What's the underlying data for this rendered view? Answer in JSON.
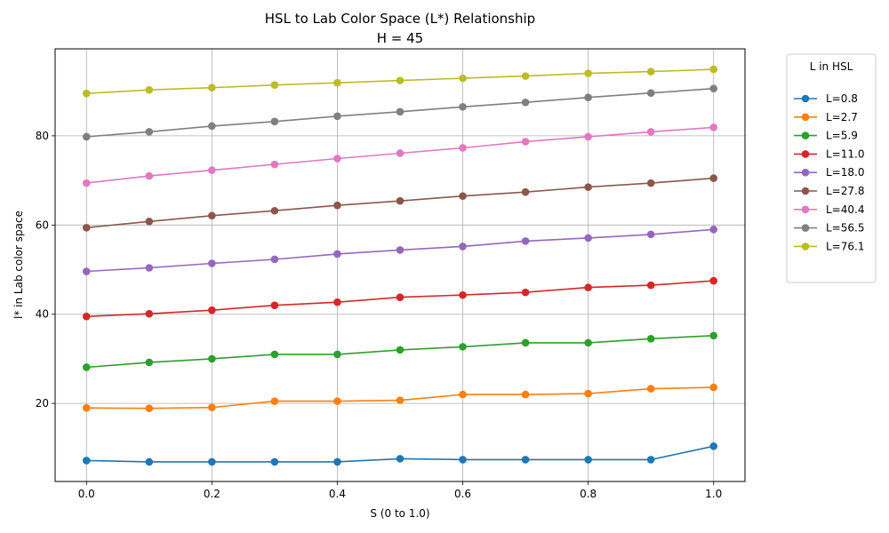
{
  "chart_data": {
    "type": "line",
    "title": "HSL to Lab Color Space (L*) Relationship",
    "subtitle": "H = 45",
    "xlabel": "S (0 to 1.0)",
    "ylabel": "l* in Lab color space",
    "xlim": [
      -0.05,
      1.05
    ],
    "ylim": [
      2.5,
      99.5
    ],
    "xticks": [
      0.0,
      0.2,
      0.4,
      0.6,
      0.8,
      1.0
    ],
    "xtick_labels": [
      "0.0",
      "0.2",
      "0.4",
      "0.6",
      "0.8",
      "1.0"
    ],
    "yticks": [
      20,
      40,
      60,
      80
    ],
    "ytick_labels": [
      "20",
      "40",
      "60",
      "80"
    ],
    "grid": true,
    "legend_title": "L in HSL",
    "legend_position": "outside-top-right",
    "x": [
      0.0,
      0.1,
      0.2,
      0.3,
      0.4,
      0.5,
      0.6,
      0.7,
      0.8,
      0.9,
      1.0
    ],
    "series": [
      {
        "name": "L=0.8",
        "color": "#1f77b4",
        "values": [
          7.2,
          6.9,
          6.9,
          6.9,
          6.9,
          7.6,
          7.4,
          7.4,
          7.4,
          7.4,
          10.4
        ]
      },
      {
        "name": "L=2.7",
        "color": "#ff7f0e",
        "values": [
          19.0,
          18.9,
          19.1,
          20.5,
          20.5,
          20.7,
          22.0,
          22.0,
          22.2,
          23.3,
          23.6
        ]
      },
      {
        "name": "L=5.9",
        "color": "#2ca02c",
        "values": [
          28.1,
          29.2,
          30.0,
          31.0,
          31.0,
          32.0,
          32.7,
          33.6,
          33.6,
          34.5,
          35.2
        ]
      },
      {
        "name": "L=11.0",
        "color": "#d62728",
        "values": [
          39.5,
          40.1,
          40.9,
          42.0,
          42.7,
          43.8,
          44.3,
          44.9,
          46.0,
          46.5,
          47.5
        ]
      },
      {
        "name": "L=18.0",
        "color": "#9467bd",
        "values": [
          49.6,
          50.4,
          51.4,
          52.3,
          53.5,
          54.4,
          55.2,
          56.4,
          57.1,
          57.9,
          59.0
        ]
      },
      {
        "name": "L=27.8",
        "color": "#8c564b",
        "values": [
          59.4,
          60.8,
          62.1,
          63.2,
          64.4,
          65.4,
          66.5,
          67.4,
          68.5,
          69.4,
          70.5
        ]
      },
      {
        "name": "L=40.4",
        "color": "#e377c2",
        "values": [
          69.4,
          71.0,
          72.3,
          73.6,
          74.9,
          76.1,
          77.3,
          78.7,
          79.8,
          80.9,
          81.9
        ]
      },
      {
        "name": "L=56.5",
        "color": "#7f7f7f",
        "values": [
          79.8,
          80.9,
          82.2,
          83.2,
          84.4,
          85.4,
          86.5,
          87.5,
          88.6,
          89.6,
          90.6
        ]
      },
      {
        "name": "L=76.1",
        "color": "#bcbd22",
        "values": [
          89.5,
          90.3,
          90.8,
          91.4,
          91.9,
          92.4,
          92.9,
          93.4,
          94.0,
          94.4,
          94.9
        ]
      }
    ]
  }
}
